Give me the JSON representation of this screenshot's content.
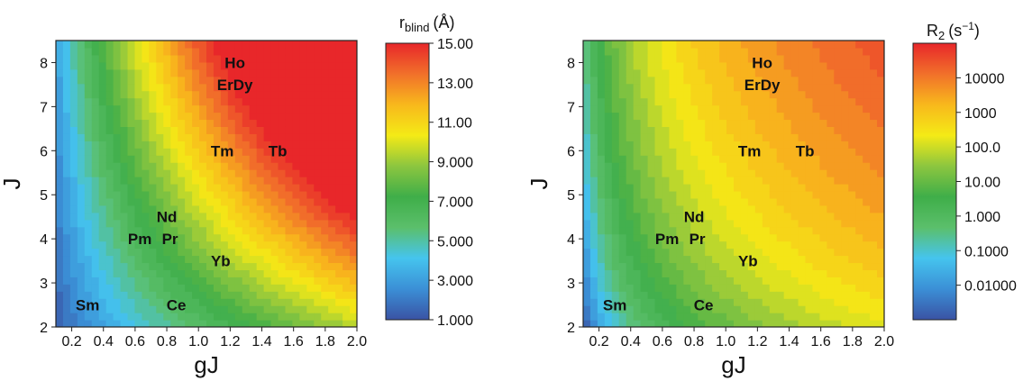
{
  "chart_data": [
    {
      "type": "heatmap",
      "title": "",
      "xlabel": "gJ",
      "ylabel": "J",
      "xlim": [
        0.1,
        2.0
      ],
      "ylim": [
        2,
        8.5
      ],
      "xticks": [
        "0.2",
        "0.4",
        "0.6",
        "0.8",
        "1.0",
        "1.2",
        "1.4",
        "1.6",
        "1.8",
        "2.0"
      ],
      "yticks": [
        "2",
        "3",
        "4",
        "5",
        "6",
        "7",
        "8"
      ],
      "colorbar": {
        "title": "r",
        "title_sub": "blind",
        "title_unit": "(Å)",
        "scale": "linear",
        "range": [
          1.0,
          15.0
        ],
        "tick_labels": [
          "15.00",
          "13.00",
          "11.00",
          "9.000",
          "7.000",
          "5.000",
          "3.000",
          "1.000"
        ],
        "tick_values": [
          15,
          13,
          11,
          9,
          7,
          5,
          3,
          1
        ]
      },
      "annotations": [
        {
          "text": "Ho",
          "x": 1.23,
          "y": 8.0
        },
        {
          "text": "ErDy",
          "x": 1.23,
          "y": 7.5
        },
        {
          "text": "Tm",
          "x": 1.15,
          "y": 6.0
        },
        {
          "text": "Tb",
          "x": 1.5,
          "y": 6.0
        },
        {
          "text": "Nd",
          "x": 0.8,
          "y": 4.5
        },
        {
          "text": "Pm",
          "x": 0.63,
          "y": 4.0
        },
        {
          "text": "Pr",
          "x": 0.82,
          "y": 4.0
        },
        {
          "text": "Yb",
          "x": 1.14,
          "y": 3.5
        },
        {
          "text": "Sm",
          "x": 0.3,
          "y": 2.5
        },
        {
          "text": "Ce",
          "x": 0.86,
          "y": 2.5
        }
      ]
    },
    {
      "type": "heatmap",
      "title": "",
      "xlabel": "gJ",
      "ylabel": "J",
      "xlim": [
        0.1,
        2.0
      ],
      "ylim": [
        2,
        8.5
      ],
      "xticks": [
        "0.2",
        "0.4",
        "0.6",
        "0.8",
        "1.0",
        "1.2",
        "1.4",
        "1.6",
        "1.8",
        "2.0"
      ],
      "yticks": [
        "2",
        "3",
        "4",
        "5",
        "6",
        "7",
        "8"
      ],
      "colorbar": {
        "title": "R",
        "title_sub": "2",
        "title_unit": "(s",
        "title_sup": "−1",
        "title_end": ")",
        "scale": "log",
        "range": [
          0.001,
          100000
        ],
        "tick_labels": [
          "10000",
          "1000",
          "100.0",
          "10.00",
          "1.000",
          "0.1000",
          "0.01000"
        ],
        "tick_values": [
          10000,
          1000,
          100,
          10,
          1,
          0.1,
          0.01
        ]
      },
      "annotations": [
        {
          "text": "Ho",
          "x": 1.23,
          "y": 8.0
        },
        {
          "text": "ErDy",
          "x": 1.23,
          "y": 7.5
        },
        {
          "text": "Tm",
          "x": 1.15,
          "y": 6.0
        },
        {
          "text": "Tb",
          "x": 1.5,
          "y": 6.0
        },
        {
          "text": "Nd",
          "x": 0.8,
          "y": 4.5
        },
        {
          "text": "Pm",
          "x": 0.63,
          "y": 4.0
        },
        {
          "text": "Pr",
          "x": 0.82,
          "y": 4.0
        },
        {
          "text": "Yb",
          "x": 1.14,
          "y": 3.5
        },
        {
          "text": "Sm",
          "x": 0.3,
          "y": 2.5
        },
        {
          "text": "Ce",
          "x": 0.86,
          "y": 2.5
        }
      ]
    }
  ],
  "colors": {
    "palette": [
      "#3a53a4",
      "#3b8fd6",
      "#45c4ee",
      "#5bbf6b",
      "#3fae49",
      "#8cc63f",
      "#f4ea16",
      "#f8b81c",
      "#f1702a",
      "#e8272a"
    ]
  }
}
